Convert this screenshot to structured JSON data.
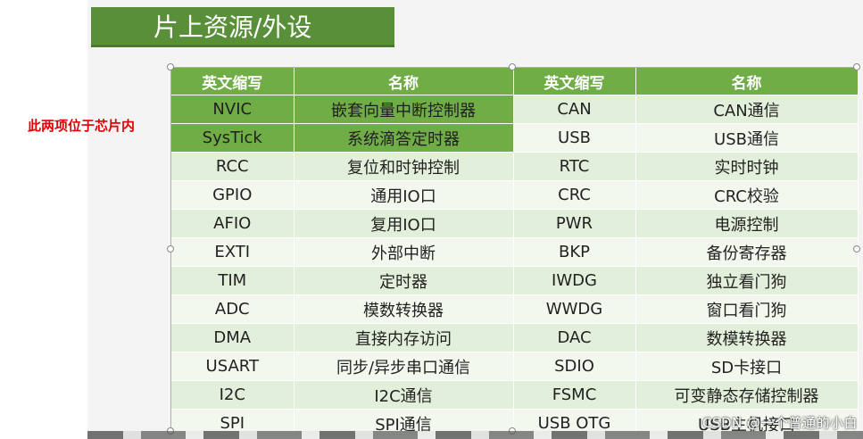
{
  "title": "片上资源/外设",
  "side_note": "此两项位于芯片内",
  "table": {
    "headers": [
      "英文缩写",
      "名称",
      "英文缩写",
      "名称"
    ],
    "rows": [
      [
        "NVIC",
        "嵌套向量中断控制器",
        "CAN",
        "CAN通信"
      ],
      [
        "SysTick",
        "系统滴答定时器",
        "USB",
        "USB通信"
      ],
      [
        "RCC",
        "复位和时钟控制",
        "RTC",
        "实时时钟"
      ],
      [
        "GPIO",
        "通用IO口",
        "CRC",
        "CRC校验"
      ],
      [
        "AFIO",
        "复用IO口",
        "PWR",
        "电源控制"
      ],
      [
        "EXTI",
        "外部中断",
        "BKP",
        "备份寄存器"
      ],
      [
        "TIM",
        "定时器",
        "IWDG",
        "独立看门狗"
      ],
      [
        "ADC",
        "模数转换器",
        "WWDG",
        "窗口看门狗"
      ],
      [
        "DMA",
        "直接内存访问",
        "DAC",
        "数模转换器"
      ],
      [
        "USART",
        "同步/异步串口通信",
        "SDIO",
        "SD卡接口"
      ],
      [
        "I2C",
        "I2C通信",
        "FSMC",
        "可变静态存储控制器"
      ],
      [
        "SPI",
        "SPI通信",
        "USB OTG",
        "USB主机接口"
      ]
    ]
  },
  "watermark": "CSDN @一个普通的小白",
  "colors": {
    "header": "#70ad47",
    "title_bg": "#5a8f3a",
    "note": "#e00000"
  }
}
